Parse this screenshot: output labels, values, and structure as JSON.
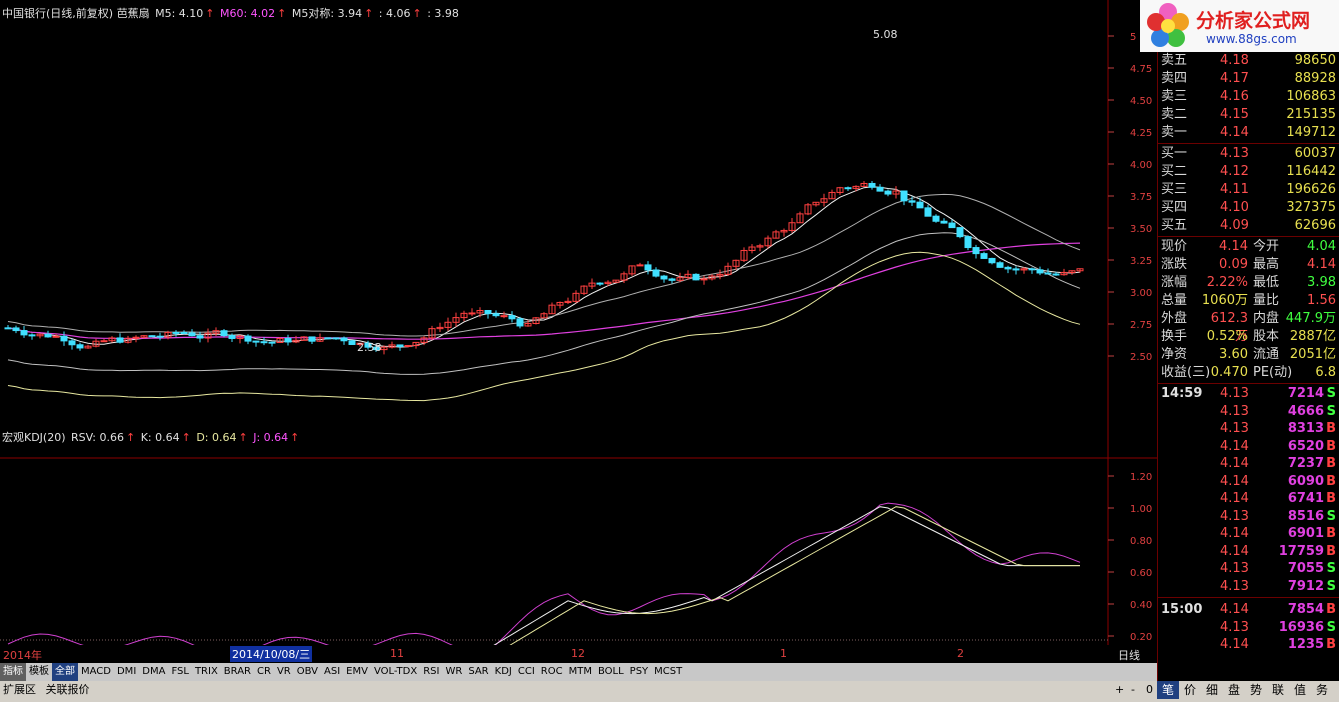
{
  "header": {
    "title": "中国银行(日线,前复权) 芭蕉扇",
    "m5": "M5: 4.10",
    "m60": "M60: 4.02",
    "m5dc": "M5对称: 3.94",
    "v1": ": 4.06",
    "v2": ": 3.98",
    "arrow": "↑"
  },
  "kdj_header": {
    "title": "宏观KDJ(20)",
    "rsv": "RSV: 0.66",
    "k": "K: 0.64",
    "d": "D: 0.64",
    "j": "J: 0.64",
    "arrow": "↑"
  },
  "price_axis": [
    "5",
    "4.75",
    "4.50",
    "4.25",
    "4.00",
    "3.75",
    "3.50",
    "3.25",
    "3.00",
    "2.75",
    "2.50"
  ],
  "kdj_axis": [
    "1.20",
    "1.00",
    "0.80",
    "0.60",
    "0.40",
    "0.20"
  ],
  "annotations": {
    "high": "5.08",
    "low": "2.58"
  },
  "x_labels": {
    "y2014": "2014年",
    "date": "2014/10/08/三",
    "m11": "11",
    "m12": "12",
    "m1": "1",
    "m2": "2",
    "period": "日线"
  },
  "logo": {
    "name": "分析家公式网",
    "url": "www.88gs.com"
  },
  "order_book": {
    "sell": [
      {
        "label": "卖五",
        "price": "4.18",
        "vol": "98650"
      },
      {
        "label": "卖四",
        "price": "4.17",
        "vol": "88928"
      },
      {
        "label": "卖三",
        "price": "4.16",
        "vol": "106863"
      },
      {
        "label": "卖二",
        "price": "4.15",
        "vol": "215135"
      },
      {
        "label": "卖一",
        "price": "4.14",
        "vol": "149712"
      }
    ],
    "buy": [
      {
        "label": "买一",
        "price": "4.13",
        "vol": "60037"
      },
      {
        "label": "买二",
        "price": "4.12",
        "vol": "116442"
      },
      {
        "label": "买三",
        "price": "4.11",
        "vol": "196626"
      },
      {
        "label": "买四",
        "price": "4.10",
        "vol": "327375"
      },
      {
        "label": "买五",
        "price": "4.09",
        "vol": "62696"
      }
    ]
  },
  "quote": [
    {
      "l1": "现价",
      "v1": "4.14",
      "l2": "今开",
      "v2": "4.04",
      "c1": "red",
      "c2": "green"
    },
    {
      "l1": "涨跌",
      "v1": "0.09",
      "l2": "最高",
      "v2": "4.14",
      "c1": "red",
      "c2": "red"
    },
    {
      "l1": "涨幅",
      "v1": "2.22%",
      "l2": "最低",
      "v2": "3.98",
      "c1": "red",
      "c2": "green"
    },
    {
      "l1": "总量",
      "v1": "1060万",
      "l2": "量比",
      "v2": "1.56",
      "c1": "yel",
      "c2": "red"
    },
    {
      "l1": "外盘",
      "v1": "612.3万",
      "l2": "内盘",
      "v2": "447.9万",
      "c1": "red",
      "c2": "green"
    },
    {
      "l1": "换手",
      "v1": "0.52%",
      "l2": "股本",
      "v2": "2887亿",
      "c1": "yel",
      "c2": "yel"
    },
    {
      "l1": "净资",
      "v1": "3.60",
      "l2": "流通",
      "v2": "2051亿",
      "c1": "yel",
      "c2": "yel"
    },
    {
      "l1": "收益(三)",
      "v1": "0.470",
      "l2": "PE(动)",
      "v2": "6.8",
      "c1": "yel",
      "c2": "yel"
    }
  ],
  "ticks": [
    {
      "t": "14:59",
      "p": "4.13",
      "v": "7214",
      "d": "S"
    },
    {
      "t": "",
      "p": "4.13",
      "v": "4666",
      "d": "S"
    },
    {
      "t": "",
      "p": "4.13",
      "v": "8313",
      "d": "B"
    },
    {
      "t": "",
      "p": "4.14",
      "v": "6520",
      "d": "B"
    },
    {
      "t": "",
      "p": "4.14",
      "v": "7237",
      "d": "B"
    },
    {
      "t": "",
      "p": "4.14",
      "v": "6090",
      "d": "B"
    },
    {
      "t": "",
      "p": "4.14",
      "v": "6741",
      "d": "B"
    },
    {
      "t": "",
      "p": "4.13",
      "v": "8516",
      "d": "S"
    },
    {
      "t": "",
      "p": "4.14",
      "v": "6901",
      "d": "B"
    },
    {
      "t": "",
      "p": "4.14",
      "v": "17759",
      "d": "B"
    },
    {
      "t": "",
      "p": "4.13",
      "v": "7055",
      "d": "S"
    },
    {
      "t": "",
      "p": "4.13",
      "v": "7912",
      "d": "S"
    },
    {
      "t": "15:00",
      "p": "4.14",
      "v": "7854",
      "d": "B"
    },
    {
      "t": "",
      "p": "4.13",
      "v": "16936",
      "d": "S"
    },
    {
      "t": "",
      "p": "4.14",
      "v": "1235",
      "d": "B"
    }
  ],
  "tabs": [
    "指标",
    "模板",
    "全部",
    "MACD",
    "DMI",
    "DMA",
    "FSL",
    "TRIX",
    "BRAR",
    "CR",
    "VR",
    "OBV",
    "ASI",
    "EMV",
    "VOL-TDX",
    "RSI",
    "WR",
    "SAR",
    "KDJ",
    "CCI",
    "ROC",
    "MTM",
    "BOLL",
    "PSY",
    "MCST"
  ],
  "status": [
    "扩展区",
    "关联报价"
  ],
  "controls": [
    "+",
    "-",
    "0"
  ],
  "bottom_tabs": [
    "笔",
    "价",
    "细",
    "盘",
    "势",
    "联",
    "值",
    "务"
  ]
}
